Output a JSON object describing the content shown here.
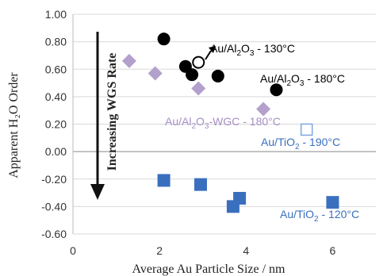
{
  "chart_data": {
    "type": "scatter",
    "xlabel": "Average Au Particle Size / nm",
    "ylabel": "Apparent H₂O Order",
    "xlim": [
      0,
      7
    ],
    "ylim": [
      -0.6,
      1.0
    ],
    "x_ticks": [
      "0",
      "2",
      "4",
      "6"
    ],
    "y_ticks": [
      "-0.60",
      "-0.40",
      "-0.20",
      "0.00",
      "0.20",
      "0.40",
      "0.60",
      "0.80",
      "1.00"
    ],
    "annotation": "Increasing WGS Rate",
    "colors": {
      "black": "#000000",
      "purple": "#b3a0cc",
      "purple_text": "#a58fc4",
      "blue": "#3a6fbe",
      "blue_text": "#3a6fbe"
    },
    "series": [
      {
        "name": "Au/Al2O3 - 130°C",
        "label_parts": [
          "Au/Al",
          "2",
          "O",
          "3",
          " - 130°C"
        ],
        "marker": "open-circle",
        "color": "#000000",
        "points": [
          [
            2.9,
            0.65
          ]
        ]
      },
      {
        "name": "Au/Al2O3 - 180°C",
        "label_parts": [
          "Au/Al",
          "2",
          "O",
          "3",
          " - 180°C"
        ],
        "marker": "filled-circle",
        "color": "#000000",
        "points": [
          [
            2.1,
            0.82
          ],
          [
            2.6,
            0.62
          ],
          [
            2.75,
            0.56
          ],
          [
            3.35,
            0.55
          ],
          [
            4.7,
            0.45
          ]
        ]
      },
      {
        "name": "Au/Al2O3-WGC - 180°C",
        "label_parts": [
          "Au/Al",
          "2",
          "O",
          "3",
          "-WGC - 180°C"
        ],
        "marker": "diamond",
        "color": "#b3a0cc",
        "points": [
          [
            1.3,
            0.66
          ],
          [
            1.9,
            0.57
          ],
          [
            2.9,
            0.46
          ],
          [
            4.4,
            0.31
          ]
        ]
      },
      {
        "name": "Au/TiO2 - 190°C",
        "label_parts": [
          "Au/TiO",
          "2",
          " - 190°C"
        ],
        "marker": "open-square",
        "color": "#3a6fbe",
        "points": [
          [
            5.4,
            0.16
          ]
        ]
      },
      {
        "name": "Au/TiO2 - 120°C",
        "label_parts": [
          "Au/TiO",
          "2",
          " - 120°C"
        ],
        "marker": "filled-square",
        "color": "#3a6fbe",
        "points": [
          [
            2.1,
            -0.21
          ],
          [
            2.95,
            -0.24
          ],
          [
            3.7,
            -0.4
          ],
          [
            3.85,
            -0.34
          ],
          [
            6.0,
            -0.37
          ]
        ]
      }
    ]
  }
}
